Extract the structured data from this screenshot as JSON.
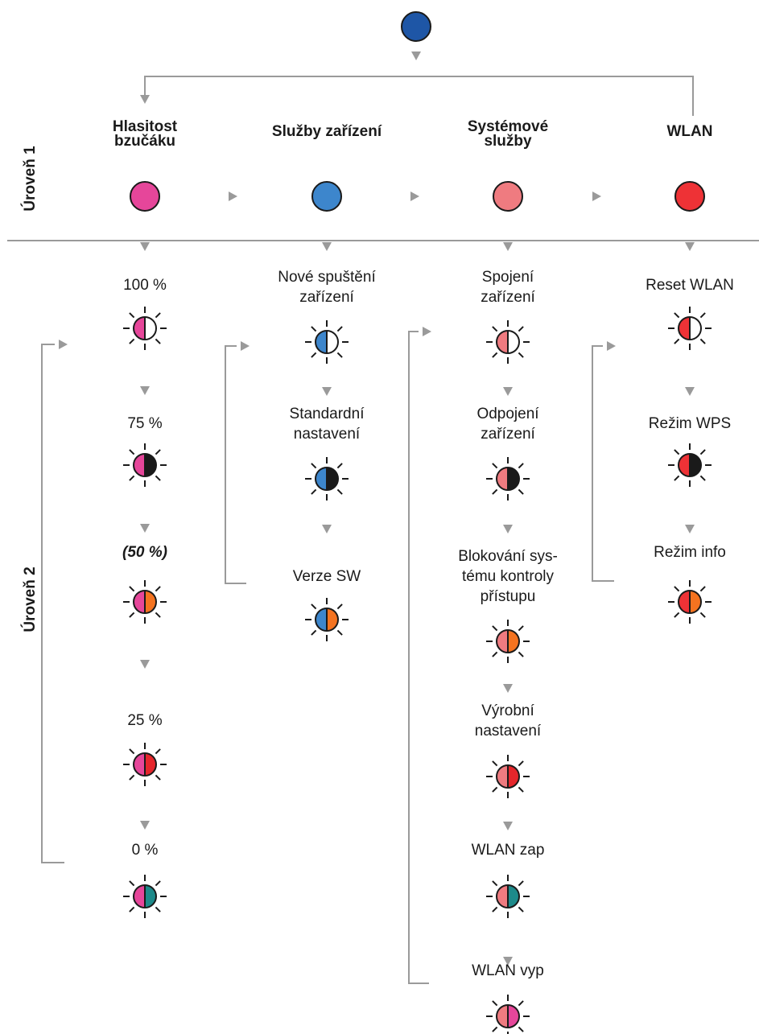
{
  "level_labels": {
    "level1": "Úroveň 1",
    "level2": "Úroveň 2"
  },
  "colors": {
    "top": "#1e56a6",
    "buzzer": "#e6469a",
    "device_services": "#3d86cc",
    "system_services": "#ef7b80",
    "wlan": "#ee3236",
    "line": "#9a9a9a",
    "white": "#ffffff",
    "black": "#1a1a1a",
    "orange": "#f47320",
    "red": "#e5262b",
    "teal": "#1d8a8a",
    "pink": "#e6469a"
  },
  "columns": [
    {
      "id": "buzzer",
      "header": [
        "Hlasitost",
        "bzučáku"
      ],
      "color_key": "buzzer",
      "items": [
        {
          "label": [
            "100 %"
          ],
          "led": "white"
        },
        {
          "label": [
            "75 %"
          ],
          "led": "black"
        },
        {
          "label": [
            "(50 %)"
          ],
          "led": "orange",
          "emphasis": true
        },
        {
          "label": [
            "25 %"
          ],
          "led": "red"
        },
        {
          "label": [
            "0 %"
          ],
          "led": "teal"
        }
      ]
    },
    {
      "id": "device",
      "header": [
        "Služby zařízení"
      ],
      "color_key": "device_services",
      "items": [
        {
          "label": [
            "Nové spuštění",
            "zařízení"
          ],
          "led": "white"
        },
        {
          "label": [
            "Standardní",
            "nastavení"
          ],
          "led": "black"
        },
        {
          "label": [
            "Verze SW"
          ],
          "led": "orange"
        }
      ]
    },
    {
      "id": "system",
      "header": [
        "Systémové",
        "služby"
      ],
      "color_key": "system_services",
      "items": [
        {
          "label": [
            "Spojení",
            "zařízení"
          ],
          "led": "white"
        },
        {
          "label": [
            "Odpojení",
            "zařízení"
          ],
          "led": "black"
        },
        {
          "label": [
            "Blokování sys-",
            "tému kontroly",
            "přístupu"
          ],
          "led": "orange"
        },
        {
          "label": [
            "Výrobní",
            "nastavení"
          ],
          "led": "red"
        },
        {
          "label": [
            "WLAN zap"
          ],
          "led": "teal"
        },
        {
          "label": [
            "WLAN vyp"
          ],
          "led": "pink"
        }
      ]
    },
    {
      "id": "wlan",
      "header": [
        "WLAN"
      ],
      "color_key": "wlan",
      "items": [
        {
          "label": [
            "Reset WLAN"
          ],
          "led": "white"
        },
        {
          "label": [
            "Režim WPS"
          ],
          "led": "black"
        },
        {
          "label": [
            "Režim info"
          ],
          "led": "orange"
        }
      ]
    }
  ]
}
